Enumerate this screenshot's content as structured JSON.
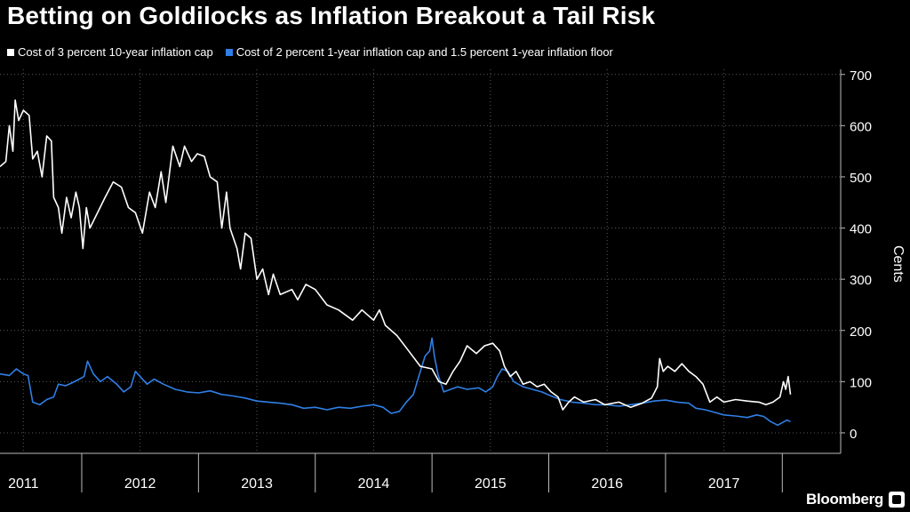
{
  "chart_data": {
    "type": "line",
    "title": "Betting on Goldilocks as Inflation Breakout a Tail Risk",
    "ylabel": "Cents",
    "ylim": [
      -40,
      710
    ],
    "y_ticks": [
      0,
      100,
      200,
      300,
      400,
      500,
      600,
      700
    ],
    "xlim": [
      2010.8,
      2018.0
    ],
    "year_dividers": [
      2011.5,
      2012.5,
      2013.5,
      2014.5,
      2015.5,
      2016.5,
      2017.5
    ],
    "x_tick_labels": [
      {
        "x": 2011.0,
        "label": "2011"
      },
      {
        "x": 2012.0,
        "label": "2012"
      },
      {
        "x": 2013.0,
        "label": "2013"
      },
      {
        "x": 2014.0,
        "label": "2014"
      },
      {
        "x": 2015.0,
        "label": "2015"
      },
      {
        "x": 2016.0,
        "label": "2016"
      },
      {
        "x": 2017.0,
        "label": "2017"
      }
    ],
    "grid": true,
    "legend_position": "top-left",
    "series": [
      {
        "name": "Cost of 3 percent 10-year inflation cap",
        "color": "#ffffff",
        "points": [
          [
            2010.8,
            520
          ],
          [
            2010.85,
            530
          ],
          [
            2010.88,
            600
          ],
          [
            2010.91,
            550
          ],
          [
            2010.93,
            650
          ],
          [
            2010.96,
            610
          ],
          [
            2011.0,
            630
          ],
          [
            2011.05,
            620
          ],
          [
            2011.08,
            535
          ],
          [
            2011.12,
            550
          ],
          [
            2011.16,
            500
          ],
          [
            2011.2,
            580
          ],
          [
            2011.24,
            570
          ],
          [
            2011.26,
            460
          ],
          [
            2011.3,
            440
          ],
          [
            2011.33,
            390
          ],
          [
            2011.37,
            460
          ],
          [
            2011.41,
            420
          ],
          [
            2011.45,
            470
          ],
          [
            2011.48,
            440
          ],
          [
            2011.51,
            360
          ],
          [
            2011.54,
            440
          ],
          [
            2011.57,
            400
          ],
          [
            2011.7,
            460
          ],
          [
            2011.77,
            490
          ],
          [
            2011.84,
            480
          ],
          [
            2011.9,
            440
          ],
          [
            2011.96,
            430
          ],
          [
            2012.02,
            390
          ],
          [
            2012.08,
            470
          ],
          [
            2012.13,
            440
          ],
          [
            2012.18,
            510
          ],
          [
            2012.22,
            450
          ],
          [
            2012.28,
            560
          ],
          [
            2012.34,
            520
          ],
          [
            2012.38,
            560
          ],
          [
            2012.44,
            530
          ],
          [
            2012.49,
            545
          ],
          [
            2012.55,
            540
          ],
          [
            2012.6,
            500
          ],
          [
            2012.66,
            490
          ],
          [
            2012.7,
            400
          ],
          [
            2012.74,
            470
          ],
          [
            2012.77,
            400
          ],
          [
            2012.83,
            360
          ],
          [
            2012.86,
            320
          ],
          [
            2012.9,
            390
          ],
          [
            2012.95,
            380
          ],
          [
            2013.0,
            300
          ],
          [
            2013.05,
            320
          ],
          [
            2013.1,
            270
          ],
          [
            2013.14,
            310
          ],
          [
            2013.2,
            270
          ],
          [
            2013.3,
            280
          ],
          [
            2013.35,
            260
          ],
          [
            2013.42,
            290
          ],
          [
            2013.5,
            280
          ],
          [
            2013.6,
            250
          ],
          [
            2013.7,
            240
          ],
          [
            2013.82,
            220
          ],
          [
            2013.9,
            240
          ],
          [
            2014.0,
            220
          ],
          [
            2014.05,
            240
          ],
          [
            2014.1,
            210
          ],
          [
            2014.2,
            190
          ],
          [
            2014.3,
            160
          ],
          [
            2014.4,
            130
          ],
          [
            2014.5,
            125
          ],
          [
            2014.56,
            100
          ],
          [
            2014.62,
            95
          ],
          [
            2014.68,
            120
          ],
          [
            2014.74,
            140
          ],
          [
            2014.8,
            170
          ],
          [
            2014.88,
            155
          ],
          [
            2014.95,
            170
          ],
          [
            2015.02,
            175
          ],
          [
            2015.08,
            160
          ],
          [
            2015.12,
            130
          ],
          [
            2015.17,
            110
          ],
          [
            2015.22,
            120
          ],
          [
            2015.28,
            95
          ],
          [
            2015.34,
            100
          ],
          [
            2015.4,
            90
          ],
          [
            2015.46,
            95
          ],
          [
            2015.52,
            80
          ],
          [
            2015.58,
            70
          ],
          [
            2015.62,
            45
          ],
          [
            2015.67,
            60
          ],
          [
            2015.72,
            70
          ],
          [
            2015.8,
            60
          ],
          [
            2015.9,
            65
          ],
          [
            2015.98,
            55
          ],
          [
            2016.1,
            60
          ],
          [
            2016.2,
            50
          ],
          [
            2016.3,
            58
          ],
          [
            2016.38,
            68
          ],
          [
            2016.43,
            90
          ],
          [
            2016.45,
            145
          ],
          [
            2016.48,
            120
          ],
          [
            2016.52,
            130
          ],
          [
            2016.58,
            120
          ],
          [
            2016.64,
            135
          ],
          [
            2016.7,
            120
          ],
          [
            2016.76,
            110
          ],
          [
            2016.82,
            95
          ],
          [
            2016.88,
            60
          ],
          [
            2016.94,
            70
          ],
          [
            2017.0,
            60
          ],
          [
            2017.1,
            65
          ],
          [
            2017.2,
            62
          ],
          [
            2017.3,
            60
          ],
          [
            2017.36,
            55
          ],
          [
            2017.42,
            60
          ],
          [
            2017.48,
            70
          ],
          [
            2017.51,
            100
          ],
          [
            2017.53,
            85
          ],
          [
            2017.55,
            110
          ],
          [
            2017.57,
            75
          ]
        ]
      },
      {
        "name": "Cost of 2 percent 1-year inflation cap and 1.5 percent 1-year inflation floor",
        "color": "#2f7fe6",
        "points": [
          [
            2010.8,
            115
          ],
          [
            2010.88,
            112
          ],
          [
            2010.94,
            125
          ],
          [
            2011.0,
            115
          ],
          [
            2011.04,
            112
          ],
          [
            2011.08,
            60
          ],
          [
            2011.14,
            55
          ],
          [
            2011.2,
            65
          ],
          [
            2011.26,
            70
          ],
          [
            2011.3,
            95
          ],
          [
            2011.36,
            92
          ],
          [
            2011.42,
            98
          ],
          [
            2011.48,
            105
          ],
          [
            2011.52,
            110
          ],
          [
            2011.55,
            140
          ],
          [
            2011.6,
            115
          ],
          [
            2011.66,
            100
          ],
          [
            2011.72,
            110
          ],
          [
            2011.8,
            95
          ],
          [
            2011.86,
            80
          ],
          [
            2011.92,
            90
          ],
          [
            2011.96,
            120
          ],
          [
            2012.0,
            110
          ],
          [
            2012.06,
            95
          ],
          [
            2012.12,
            105
          ],
          [
            2012.2,
            95
          ],
          [
            2012.3,
            85
          ],
          [
            2012.4,
            80
          ],
          [
            2012.5,
            78
          ],
          [
            2012.6,
            82
          ],
          [
            2012.7,
            75
          ],
          [
            2012.8,
            72
          ],
          [
            2012.9,
            68
          ],
          [
            2013.0,
            62
          ],
          [
            2013.1,
            60
          ],
          [
            2013.2,
            58
          ],
          [
            2013.3,
            55
          ],
          [
            2013.4,
            48
          ],
          [
            2013.5,
            50
          ],
          [
            2013.6,
            45
          ],
          [
            2013.7,
            50
          ],
          [
            2013.8,
            48
          ],
          [
            2013.9,
            52
          ],
          [
            2014.0,
            55
          ],
          [
            2014.08,
            50
          ],
          [
            2014.15,
            38
          ],
          [
            2014.22,
            42
          ],
          [
            2014.28,
            60
          ],
          [
            2014.34,
            75
          ],
          [
            2014.4,
            120
          ],
          [
            2014.44,
            150
          ],
          [
            2014.48,
            160
          ],
          [
            2014.5,
            185
          ],
          [
            2014.52,
            150
          ],
          [
            2014.55,
            115
          ],
          [
            2014.6,
            80
          ],
          [
            2014.66,
            85
          ],
          [
            2014.72,
            90
          ],
          [
            2014.8,
            85
          ],
          [
            2014.9,
            88
          ],
          [
            2014.96,
            80
          ],
          [
            2015.02,
            90
          ],
          [
            2015.06,
            110
          ],
          [
            2015.1,
            125
          ],
          [
            2015.15,
            120
          ],
          [
            2015.2,
            100
          ],
          [
            2015.28,
            90
          ],
          [
            2015.36,
            85
          ],
          [
            2015.44,
            80
          ],
          [
            2015.52,
            72
          ],
          [
            2015.6,
            65
          ],
          [
            2015.7,
            60
          ],
          [
            2015.8,
            58
          ],
          [
            2015.9,
            55
          ],
          [
            2016.0,
            55
          ],
          [
            2016.1,
            52
          ],
          [
            2016.2,
            55
          ],
          [
            2016.3,
            58
          ],
          [
            2016.4,
            62
          ],
          [
            2016.5,
            64
          ],
          [
            2016.6,
            60
          ],
          [
            2016.7,
            58
          ],
          [
            2016.76,
            48
          ],
          [
            2016.84,
            45
          ],
          [
            2016.92,
            40
          ],
          [
            2017.0,
            35
          ],
          [
            2017.1,
            33
          ],
          [
            2017.2,
            30
          ],
          [
            2017.28,
            35
          ],
          [
            2017.34,
            32
          ],
          [
            2017.4,
            22
          ],
          [
            2017.46,
            15
          ],
          [
            2017.5,
            20
          ],
          [
            2017.54,
            25
          ],
          [
            2017.57,
            22
          ]
        ]
      }
    ]
  },
  "branding": {
    "name": "Bloomberg"
  }
}
